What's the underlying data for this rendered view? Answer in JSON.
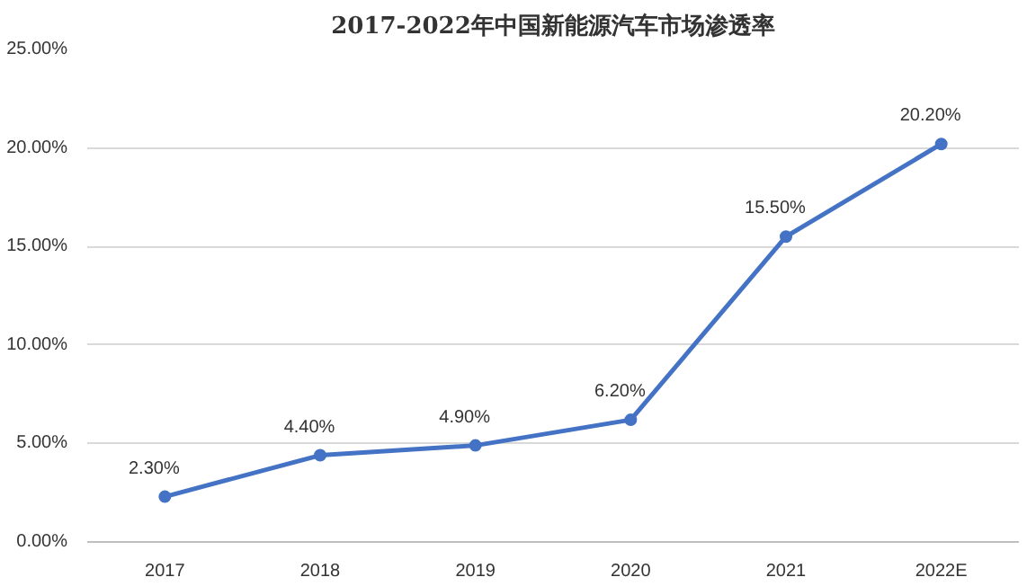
{
  "chart_data": {
    "type": "line",
    "title": "2017-2022年中国新能源汽车市场渗透率",
    "categories": [
      "2017",
      "2018",
      "2019",
      "2020",
      "2021",
      "2022E"
    ],
    "series": [
      {
        "color": "#4472c4",
        "values": [
          2.3,
          4.4,
          4.9,
          6.2,
          15.5,
          20.2
        ]
      }
    ],
    "value_labels": [
      "2.30%",
      "4.40%",
      "4.90%",
      "6.20%",
      "15.50%",
      "20.20%"
    ],
    "ylim": [
      0,
      25
    ],
    "yticks": [
      {
        "value": 0,
        "label": "0.00%"
      },
      {
        "value": 5,
        "label": "5.00%"
      },
      {
        "value": 10,
        "label": "10.00%"
      },
      {
        "value": 15,
        "label": "15.00%"
      },
      {
        "value": 20,
        "label": "20.00%"
      },
      {
        "value": 25,
        "label": "25.00%"
      }
    ],
    "grid": "y",
    "marker": "circle",
    "line_style": "solid"
  }
}
